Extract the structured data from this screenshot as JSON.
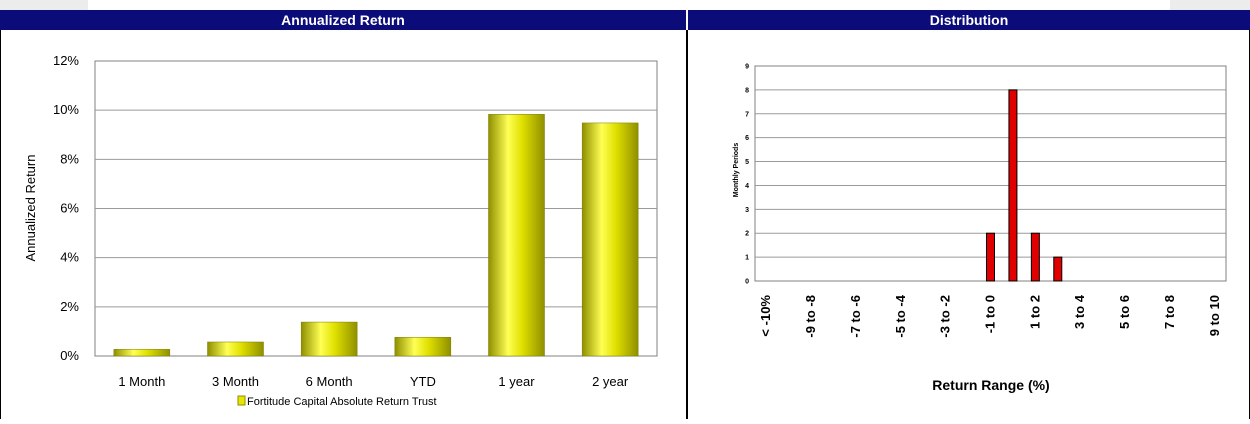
{
  "left_header": "Annualized Return",
  "right_header": "Distribution",
  "chart_data": [
    {
      "type": "bar",
      "title": "",
      "ylabel": "Annualized Return",
      "xlabel": "",
      "categories": [
        "1 Month",
        "3 Month",
        "6 Month",
        "YTD",
        "1 year",
        "2 year"
      ],
      "series": [
        {
          "name": "Fortitude Capital Absolute Return Trust",
          "values": [
            0.27,
            0.57,
            1.38,
            0.76,
            9.83,
            9.48
          ]
        }
      ],
      "yticks": [
        "0%",
        "2%",
        "4%",
        "6%",
        "8%",
        "10%",
        "12%"
      ],
      "ylim": [
        0,
        12
      ],
      "grid": true,
      "legend": "bottom",
      "colors": {
        "bar": "#d4d400",
        "bar_light": "#ffff60",
        "bar_dark": "#9a9a00",
        "swatch": "#e6e600"
      }
    },
    {
      "type": "bar",
      "title": "",
      "ylabel": "Monthly Periods",
      "xlabel": "Return Range (%)",
      "categories": [
        "< -10%",
        "-9 to -8",
        "-7 to -6",
        "-5 to -4",
        "-3 to -2",
        "-1 to 0",
        "1 to 2",
        "3 to 4",
        "5 to 6",
        "7 to 8",
        "9 to 10"
      ],
      "bars": [
        {
          "label": "< -10%",
          "value": 0
        },
        {
          "label": "",
          "value": 0
        },
        {
          "label": "-9 to -8",
          "value": 0
        },
        {
          "label": "",
          "value": 0
        },
        {
          "label": "-7 to -6",
          "value": 0
        },
        {
          "label": "",
          "value": 0
        },
        {
          "label": "-5 to -4",
          "value": 0
        },
        {
          "label": "",
          "value": 0
        },
        {
          "label": "-3 to -2",
          "value": 0
        },
        {
          "label": "",
          "value": 0
        },
        {
          "label": "-1 to 0",
          "value": 2
        },
        {
          "label": "",
          "value": 8
        },
        {
          "label": "1 to 2",
          "value": 2
        },
        {
          "label": "",
          "value": 1
        },
        {
          "label": "3 to 4",
          "value": 0
        },
        {
          "label": "",
          "value": 0
        },
        {
          "label": "5 to 6",
          "value": 0
        },
        {
          "label": "",
          "value": 0
        },
        {
          "label": "7 to 8",
          "value": 0
        },
        {
          "label": "",
          "value": 0
        },
        {
          "label": "9 to 10",
          "value": 0
        }
      ],
      "yticks": [
        "0",
        "1",
        "2",
        "3",
        "4",
        "5",
        "6",
        "7",
        "8",
        "9"
      ],
      "ylim": [
        0,
        9
      ],
      "grid": true,
      "legend": "none",
      "colors": {
        "bar": "#e00000",
        "border": "#000000"
      }
    }
  ]
}
